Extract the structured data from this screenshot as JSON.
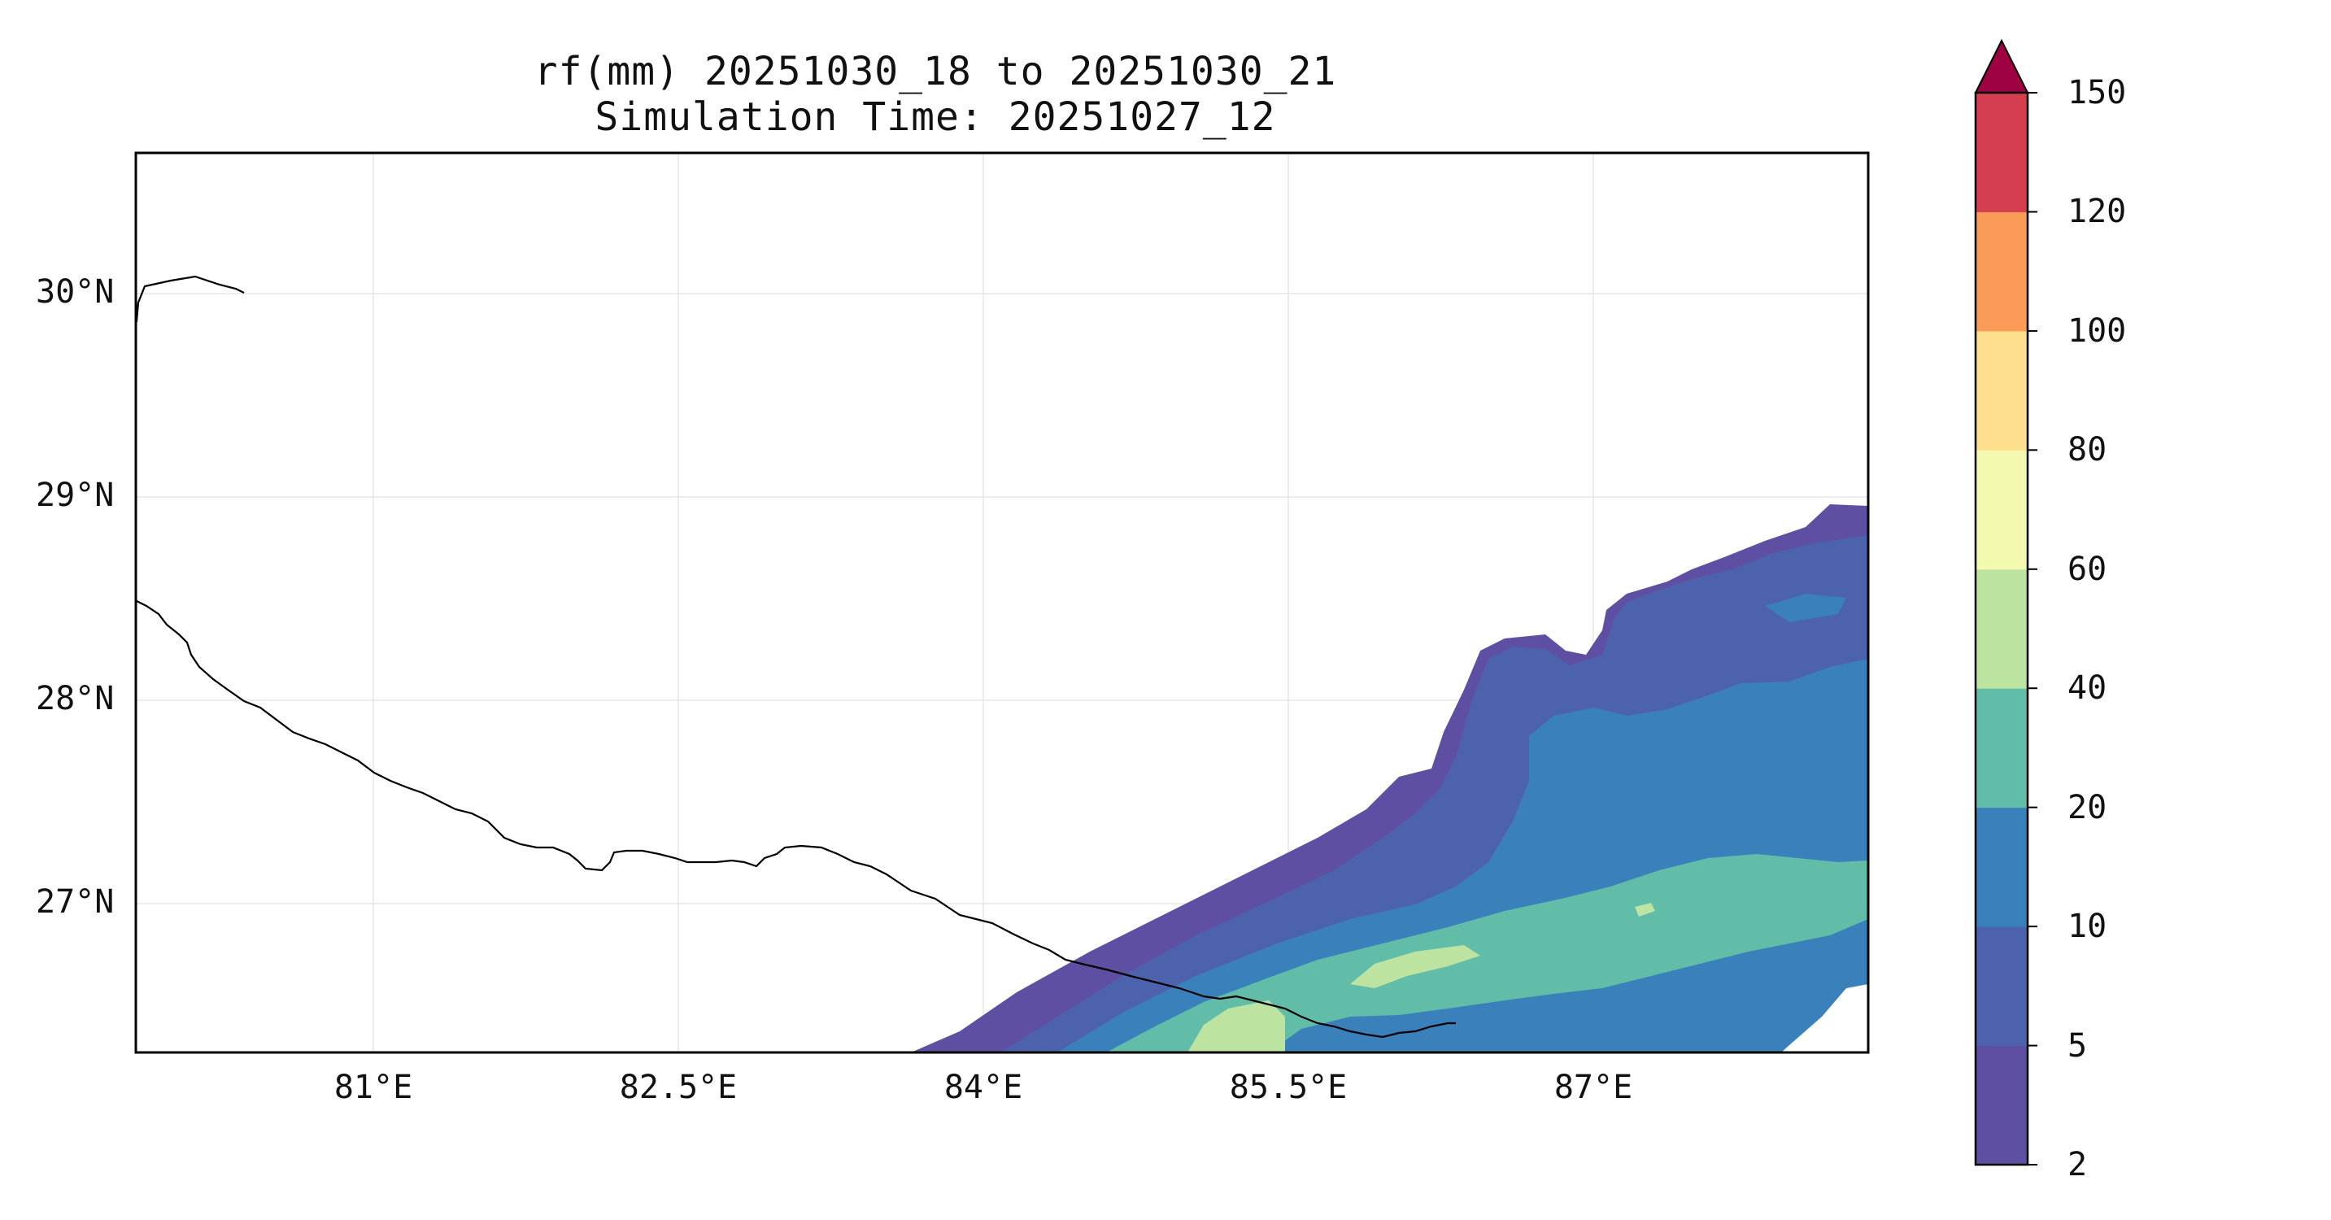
{
  "title": {
    "line1": "rf(mm) 20251030_18 to 20251030_21",
    "line2": "Simulation Time: 20251027_12"
  },
  "x_axis": {
    "ticks": [
      "81°E",
      "82.5°E",
      "84°E",
      "85.5°E",
      "87°E"
    ]
  },
  "y_axis": {
    "ticks": [
      "30°N",
      "29°N",
      "28°N",
      "27°N"
    ]
  },
  "colorbar": {
    "ticks": [
      "2",
      "5",
      "10",
      "20",
      "40",
      "60",
      "80",
      "100",
      "120",
      "150"
    ],
    "colors": [
      "#5e4fa2",
      "#4d62ad",
      "#3a80ba",
      "#62bda8",
      "#bde3a0",
      "#f4f9b0",
      "#fddf8e",
      "#fa9c58",
      "#d53e4f"
    ],
    "extend_color": "#9e0142",
    "extend": "max"
  },
  "map": {
    "region": "Nepal",
    "lon_range": [
      79.7,
      88.2
    ],
    "lat_range": [
      26.3,
      30.7
    ],
    "gridlines": true
  }
}
